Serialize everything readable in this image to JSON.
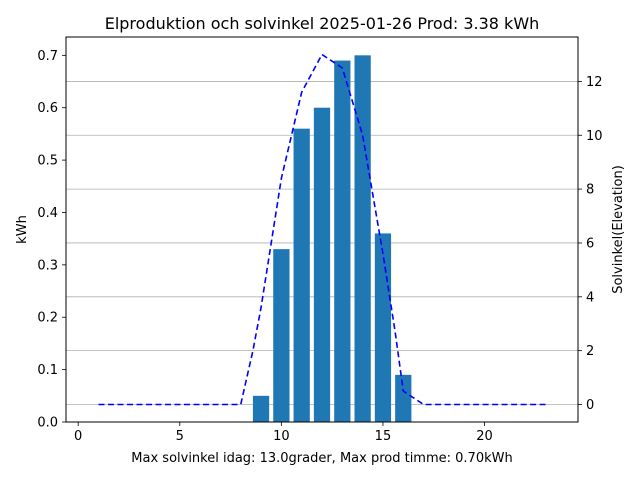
{
  "chart_data": {
    "type": "bar",
    "title": "Elproduktion och solvinkel 2025-01-26 Prod: 3.38 kWh",
    "xlabel": "Max solvinkel idag: 13.0grader, Max prod timme: 0.70kWh",
    "ylabel": "kWh",
    "y2label": "Solvinkel(Elevation)",
    "xlim": [
      -0.6,
      24.6
    ],
    "ylim": [
      0,
      0.735
    ],
    "y2lim": [
      -0.65,
      13.65
    ],
    "xticks": [
      0,
      5,
      10,
      15,
      20
    ],
    "yticks": [
      0.0,
      0.1,
      0.2,
      0.3,
      0.4,
      0.5,
      0.6,
      0.7
    ],
    "y2ticks": [
      0,
      2,
      4,
      6,
      8,
      10,
      12
    ],
    "grid": "horizontal lines on secondary axis",
    "bar_color": "#1f77b4",
    "line_color": "#0000ff",
    "series": [
      {
        "type": "bar",
        "axis": "left",
        "x": [
          9,
          10,
          11,
          12,
          13,
          14,
          15,
          16
        ],
        "values": [
          0.05,
          0.33,
          0.56,
          0.6,
          0.69,
          0.7,
          0.36,
          0.09
        ]
      },
      {
        "type": "line",
        "style": "dashed",
        "axis": "right",
        "x": [
          1,
          2,
          3,
          4,
          5,
          6,
          7,
          8,
          8.6,
          9,
          10,
          11,
          12,
          13,
          14,
          15,
          15.6,
          16,
          17,
          18,
          19,
          20,
          21,
          22,
          23
        ],
        "values": [
          0,
          0,
          0,
          0,
          0,
          0,
          0,
          0,
          2.0,
          3.6,
          8.4,
          11.6,
          13.0,
          12.5,
          10.0,
          5.6,
          2.7,
          0.5,
          0,
          0,
          0,
          0,
          0,
          0,
          0
        ]
      }
    ]
  }
}
